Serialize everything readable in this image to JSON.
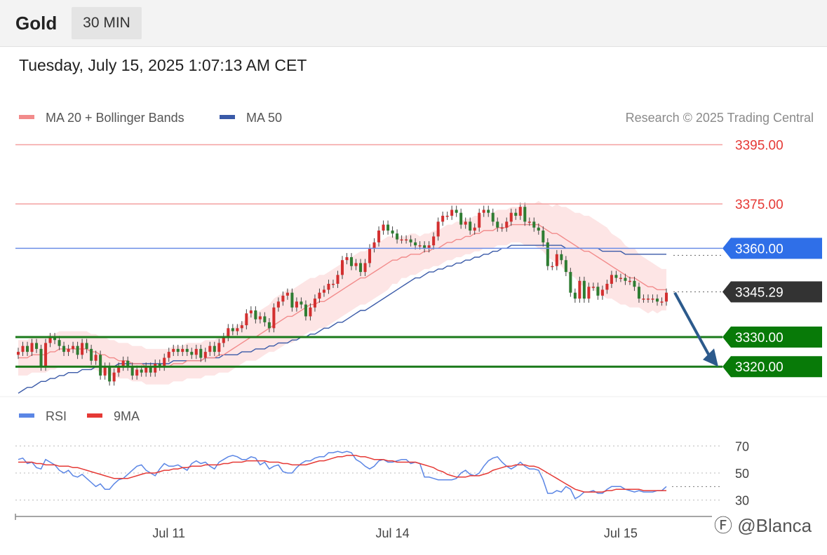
{
  "header": {
    "symbol": "Gold",
    "timeframe": "30 MIN",
    "datetime": "Tuesday, July 15, 2025 1:07:13 AM CET"
  },
  "watermark": "Ⓕ @Blanca",
  "colors": {
    "up_candle": "#d32f2f",
    "down_candle": "#2e7d32",
    "ma20": "#f28b8b",
    "bollinger_fill": "#fde0e0",
    "ma50": "#3a5aa8",
    "resistance": "#f4a0a0",
    "pivot": "#6c8ee6",
    "support": "#1a7a1a",
    "current_price": "#333333",
    "forecast_arrow": "#2c5a8c",
    "rsi": "#5b86e5",
    "rsi_ma": "#e53935"
  },
  "chart_data": [
    {
      "type": "candlestick",
      "legend": [
        {
          "name": "MA 20 + Bollinger Bands",
          "color": "#f28b8b"
        },
        {
          "name": "MA 50",
          "color": "#3a5aa8"
        }
      ],
      "legend_position": "top-left",
      "source": "Research © 2025 Trading Central",
      "ylim": [
        3312,
        3402
      ],
      "x_ticks": [
        {
          "label": "Jul 11",
          "index": 33
        },
        {
          "label": "Jul 14",
          "index": 82
        },
        {
          "label": "Jul 15",
          "index": 132
        }
      ],
      "levels": [
        {
          "value": 3395.0,
          "label": "3395.00",
          "kind": "resistance"
        },
        {
          "value": 3375.0,
          "label": "3375.00",
          "kind": "resistance"
        },
        {
          "value": 3360.0,
          "label": "3360.00",
          "kind": "pivot"
        },
        {
          "value": 3345.29,
          "label": "3345.29",
          "kind": "current"
        },
        {
          "value": 3330.0,
          "label": "3330.00",
          "kind": "support"
        },
        {
          "value": 3320.0,
          "label": "3320.00",
          "kind": "support"
        }
      ],
      "forecast_arrow": {
        "from": 3345.0,
        "to": 3320.0
      },
      "close": [
        3325,
        3327,
        3325,
        3328,
        3326,
        3320,
        3328,
        3330,
        3329,
        3327,
        3325,
        3326,
        3327,
        3324,
        3328,
        3326,
        3322,
        3324,
        3317,
        3320,
        3315,
        3318,
        3320,
        3322,
        3320,
        3317,
        3319,
        3318,
        3320,
        3318,
        3321,
        3320,
        3323,
        3325,
        3326,
        3325,
        3326,
        3325,
        3324,
        3326,
        3323,
        3325,
        3327,
        3325,
        3328,
        3330,
        3333,
        3332,
        3333,
        3334,
        3338,
        3339,
        3336,
        3337,
        3335,
        3333,
        3340,
        3342,
        3344,
        3345,
        3340,
        3342,
        3341,
        3337,
        3340,
        3343,
        3345,
        3346,
        3348,
        3348,
        3351,
        3356,
        3357,
        3354,
        3355,
        3352,
        3355,
        3360,
        3362,
        3366,
        3368,
        3366,
        3365,
        3363,
        3363,
        3363,
        3362,
        3361,
        3361,
        3360,
        3361,
        3364,
        3369,
        3371,
        3371,
        3373,
        3372,
        3368,
        3369,
        3366,
        3367,
        3372,
        3373,
        3372,
        3369,
        3367,
        3367,
        3369,
        3372,
        3371,
        3374,
        3369,
        3369,
        3367,
        3366,
        3362,
        3354,
        3354,
        3358,
        3356,
        3352,
        3345,
        3343,
        3349,
        3343,
        3347,
        3347,
        3344,
        3346,
        3348,
        3351,
        3350,
        3350,
        3349,
        3349,
        3347,
        3343,
        3343,
        3343,
        3343,
        3342,
        3342,
        3345
      ],
      "ma20": [
        3323,
        3323,
        3323,
        3324,
        3324,
        3324,
        3324,
        3325,
        3325,
        3326,
        3326,
        3326,
        3326,
        3326,
        3326,
        3326,
        3325,
        3325,
        3324,
        3324,
        3323,
        3323,
        3322,
        3322,
        3322,
        3321,
        3321,
        3321,
        3320,
        3320,
        3320,
        3320,
        3320,
        3320,
        3321,
        3321,
        3321,
        3322,
        3322,
        3322,
        3322,
        3323,
        3323,
        3323,
        3324,
        3324,
        3325,
        3326,
        3327,
        3328,
        3329,
        3330,
        3330,
        3331,
        3332,
        3333,
        3334,
        3335,
        3336,
        3337,
        3337,
        3338,
        3339,
        3340,
        3341,
        3341,
        3342,
        3342,
        3343,
        3344,
        3345,
        3346,
        3347,
        3348,
        3349,
        3350,
        3350,
        3351,
        3352,
        3353,
        3354,
        3355,
        3356,
        3356,
        3357,
        3357,
        3358,
        3358,
        3358,
        3359,
        3359,
        3360,
        3360,
        3361,
        3362,
        3362,
        3363,
        3363,
        3364,
        3364,
        3365,
        3365,
        3366,
        3366,
        3366,
        3367,
        3367,
        3367,
        3368,
        3368,
        3368,
        3368,
        3368,
        3368,
        3368,
        3367,
        3366,
        3365,
        3365,
        3364,
        3363,
        3362,
        3361,
        3360,
        3359,
        3359,
        3358,
        3357,
        3356,
        3355,
        3354,
        3353,
        3352,
        3351,
        3350,
        3350,
        3349,
        3348,
        3347,
        3347,
        3346,
        3346,
        3346
      ],
      "ma50": [
        3311,
        3312,
        3313,
        3313,
        3314,
        3315,
        3315,
        3316,
        3316,
        3317,
        3317,
        3318,
        3318,
        3318,
        3319,
        3319,
        3319,
        3320,
        3320,
        3320,
        3320,
        3320,
        3321,
        3321,
        3321,
        3321,
        3321,
        3321,
        3321,
        3321,
        3321,
        3321,
        3321,
        3321,
        3322,
        3322,
        3322,
        3322,
        3322,
        3322,
        3322,
        3323,
        3323,
        3323,
        3323,
        3324,
        3324,
        3324,
        3324,
        3325,
        3325,
        3325,
        3326,
        3326,
        3326,
        3327,
        3327,
        3328,
        3328,
        3328,
        3329,
        3329,
        3330,
        3330,
        3331,
        3331,
        3332,
        3333,
        3333,
        3334,
        3335,
        3335,
        3336,
        3337,
        3338,
        3339,
        3339,
        3340,
        3341,
        3342,
        3343,
        3344,
        3345,
        3346,
        3347,
        3348,
        3349,
        3350,
        3350,
        3351,
        3352,
        3352,
        3353,
        3353,
        3354,
        3354,
        3355,
        3355,
        3356,
        3356,
        3357,
        3357,
        3358,
        3358,
        3359,
        3359,
        3360,
        3360,
        3361,
        3361,
        3361,
        3361,
        3361,
        3361,
        3361,
        3361,
        3361,
        3361,
        3361,
        3361,
        3360,
        3360,
        3360,
        3360,
        3360,
        3360,
        3360,
        3360,
        3359,
        3359,
        3359,
        3359,
        3359,
        3358,
        3358,
        3358,
        3358,
        3358,
        3358,
        3358,
        3358,
        3358,
        3358
      ],
      "bb_width": [
        6,
        6,
        6,
        6,
        6,
        6,
        6,
        6,
        6,
        6,
        6,
        6,
        6,
        6,
        6,
        6,
        6,
        6,
        6,
        6,
        6,
        6,
        6,
        6,
        6,
        6,
        6,
        6,
        6,
        6,
        6,
        6,
        6,
        6,
        6,
        6,
        6,
        6,
        6,
        6,
        6,
        6,
        6,
        6,
        6,
        6,
        7,
        7,
        7,
        7,
        7,
        8,
        8,
        8,
        8,
        8,
        9,
        9,
        9,
        9,
        9,
        9,
        9,
        9,
        9,
        9,
        9,
        9,
        9,
        9,
        9,
        9,
        9,
        9,
        9,
        9,
        9,
        9,
        9,
        9,
        9,
        9,
        8,
        8,
        7,
        7,
        7,
        7,
        6,
        6,
        6,
        6,
        6,
        6,
        6,
        6,
        6,
        6,
        6,
        6,
        6,
        6,
        6,
        6,
        6,
        6,
        6,
        6,
        6,
        6,
        6,
        7,
        7,
        7,
        8,
        8,
        9,
        9,
        10,
        10,
        11,
        11,
        11,
        12,
        12,
        12,
        12,
        12,
        12,
        12,
        11,
        11,
        11,
        10,
        10,
        10,
        9,
        9,
        9,
        8,
        8,
        7,
        7
      ]
    },
    {
      "type": "line",
      "legend": [
        {
          "name": "RSI",
          "color": "#5b86e5"
        },
        {
          "name": "9MA",
          "color": "#e53935"
        }
      ],
      "ylim": [
        20,
        80
      ],
      "y_ticks": [
        70,
        50,
        30
      ],
      "rsi": [
        60,
        61,
        57,
        58,
        54,
        53,
        60,
        58,
        56,
        52,
        50,
        52,
        48,
        47,
        49,
        46,
        43,
        40,
        42,
        38,
        38,
        42,
        45,
        46,
        49,
        52,
        55,
        56,
        52,
        50,
        48,
        53,
        57,
        55,
        55,
        56,
        54,
        52,
        57,
        59,
        57,
        58,
        55,
        53,
        58,
        60,
        62,
        63,
        62,
        60,
        60,
        62,
        61,
        56,
        58,
        53,
        55,
        56,
        51,
        50,
        50,
        54,
        57,
        59,
        59,
        61,
        62,
        62,
        65,
        65,
        66,
        65,
        66,
        65,
        60,
        58,
        55,
        53,
        55,
        59,
        60,
        58,
        58,
        59,
        60,
        60,
        57,
        58,
        57,
        47,
        47,
        46,
        45,
        45,
        45,
        45,
        46,
        50,
        52,
        49,
        48,
        50,
        55,
        59,
        61,
        62,
        58,
        55,
        53,
        55,
        58,
        55,
        53,
        53,
        52,
        45,
        35,
        35,
        37,
        36,
        40,
        38,
        31,
        33,
        36,
        36,
        37,
        35,
        35,
        38,
        40,
        40,
        40,
        38,
        37,
        36,
        37,
        36,
        36,
        36,
        37,
        37,
        40
      ],
      "rsi_ma": [
        58,
        58,
        58,
        58,
        57,
        57,
        56,
        56,
        56,
        55,
        55,
        55,
        54,
        54,
        53,
        52,
        51,
        50,
        49,
        48,
        47,
        46,
        46,
        46,
        46,
        47,
        48,
        49,
        50,
        50,
        50,
        51,
        52,
        52,
        53,
        53,
        54,
        54,
        55,
        55,
        55,
        56,
        56,
        56,
        56,
        57,
        57,
        58,
        58,
        58,
        59,
        59,
        59,
        59,
        59,
        58,
        58,
        58,
        57,
        57,
        56,
        56,
        56,
        56,
        57,
        58,
        59,
        59,
        60,
        61,
        62,
        62,
        63,
        63,
        63,
        62,
        62,
        61,
        60,
        60,
        60,
        59,
        59,
        58,
        58,
        58,
        58,
        58,
        57,
        56,
        55,
        54,
        52,
        51,
        49,
        48,
        47,
        47,
        47,
        48,
        48,
        48,
        49,
        50,
        52,
        53,
        54,
        55,
        55,
        56,
        56,
        56,
        55,
        55,
        54,
        52,
        50,
        48,
        46,
        44,
        42,
        40,
        38,
        37,
        36,
        36,
        36,
        36,
        36,
        37,
        37,
        38,
        38,
        38,
        38,
        38,
        38,
        37,
        37,
        37,
        37,
        37,
        37
      ]
    }
  ]
}
